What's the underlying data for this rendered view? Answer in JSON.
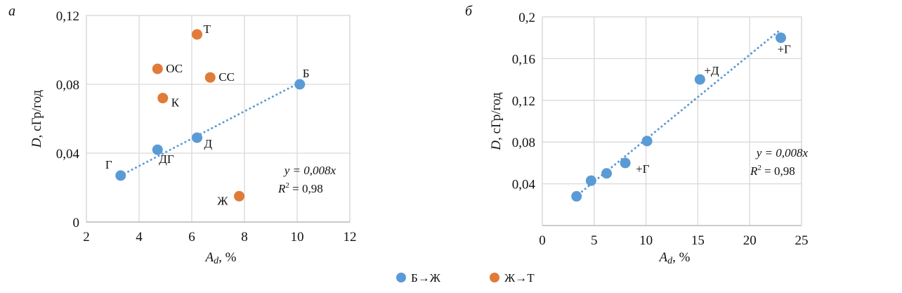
{
  "colors": {
    "blue": "#5b9bd5",
    "orange": "#e07b39",
    "grid": "#d9d9d9",
    "axis": "#bfbfbf"
  },
  "legend": [
    {
      "label": "Б→Ж",
      "color": "#5b9bd5"
    },
    {
      "label": "Ж→Т",
      "color": "#e07b39"
    }
  ],
  "chart_data": [
    {
      "type": "scatter",
      "panel_label": "а",
      "xlabel_main": "A",
      "xlabel_sub": "d",
      "xlabel_rest": ", %",
      "ylabel_var": "D",
      "ylabel_rest": ", сГр/год",
      "xlim": [
        2,
        12
      ],
      "ylim": [
        0,
        0.12
      ],
      "xticks": [
        2,
        4,
        6,
        8,
        10,
        12
      ],
      "xtick_labels": [
        "2",
        "4",
        "6",
        "8",
        "10",
        "12"
      ],
      "yticks": [
        0,
        0.04,
        0.08,
        0.12
      ],
      "ytick_labels": [
        "0",
        "0,04",
        "0,08",
        "0,12"
      ],
      "grid": true,
      "series": [
        {
          "name": "Б→Ж",
          "color": "#5b9bd5",
          "points": [
            {
              "x": 3.3,
              "y": 0.027,
              "label": "Г"
            },
            {
              "x": 4.7,
              "y": 0.042,
              "label": "ДГ"
            },
            {
              "x": 6.2,
              "y": 0.049,
              "label": "Д"
            },
            {
              "x": 10.1,
              "y": 0.08,
              "label": "Б"
            }
          ]
        },
        {
          "name": "Ж→Т",
          "color": "#e07b39",
          "points": [
            {
              "x": 6.2,
              "y": 0.109,
              "label": "Т"
            },
            {
              "x": 4.7,
              "y": 0.089,
              "label": "ОС"
            },
            {
              "x": 6.7,
              "y": 0.084,
              "label": "СС"
            },
            {
              "x": 4.9,
              "y": 0.072,
              "label": "К"
            },
            {
              "x": 7.8,
              "y": 0.015,
              "label": "Ж"
            }
          ]
        }
      ],
      "trendline": {
        "from": [
          3.3,
          0.027
        ],
        "to": [
          10.1,
          0.081
        ]
      },
      "equation": "y = 0,008x",
      "r2_prefix": "R",
      "r2_value": " = 0,98"
    },
    {
      "type": "scatter",
      "panel_label": "б",
      "xlabel_main": "A",
      "xlabel_sub": "d",
      "xlabel_rest": ", %",
      "ylabel_var": "D",
      "ylabel_rest": ", сГр/год",
      "xlim": [
        0,
        25
      ],
      "ylim": [
        0,
        0.2
      ],
      "xticks": [
        0,
        5,
        10,
        15,
        20,
        25
      ],
      "xtick_labels": [
        "0",
        "5",
        "10",
        "15",
        "20",
        "25"
      ],
      "yticks": [
        0.04,
        0.08,
        0.12,
        0.16,
        0.2
      ],
      "ytick_labels": [
        "0,04",
        "0,08",
        "0,12",
        "0,16",
        "0,2"
      ],
      "grid": true,
      "series": [
        {
          "name": "Б→Ж",
          "color": "#5b9bd5",
          "points": [
            {
              "x": 3.3,
              "y": 0.028,
              "label": ""
            },
            {
              "x": 4.7,
              "y": 0.043,
              "label": ""
            },
            {
              "x": 6.2,
              "y": 0.05,
              "label": ""
            },
            {
              "x": 8.0,
              "y": 0.06,
              "label": "+Г"
            },
            {
              "x": 10.1,
              "y": 0.081,
              "label": ""
            },
            {
              "x": 15.2,
              "y": 0.14,
              "label": "+Д"
            },
            {
              "x": 23.0,
              "y": 0.18,
              "label": "+Г"
            }
          ]
        }
      ],
      "trendline": {
        "from": [
          3.5,
          0.03
        ],
        "to": [
          23.0,
          0.188
        ]
      },
      "equation": "y = 0,008x",
      "r2_prefix": "R",
      "r2_value": " = 0,98"
    }
  ]
}
